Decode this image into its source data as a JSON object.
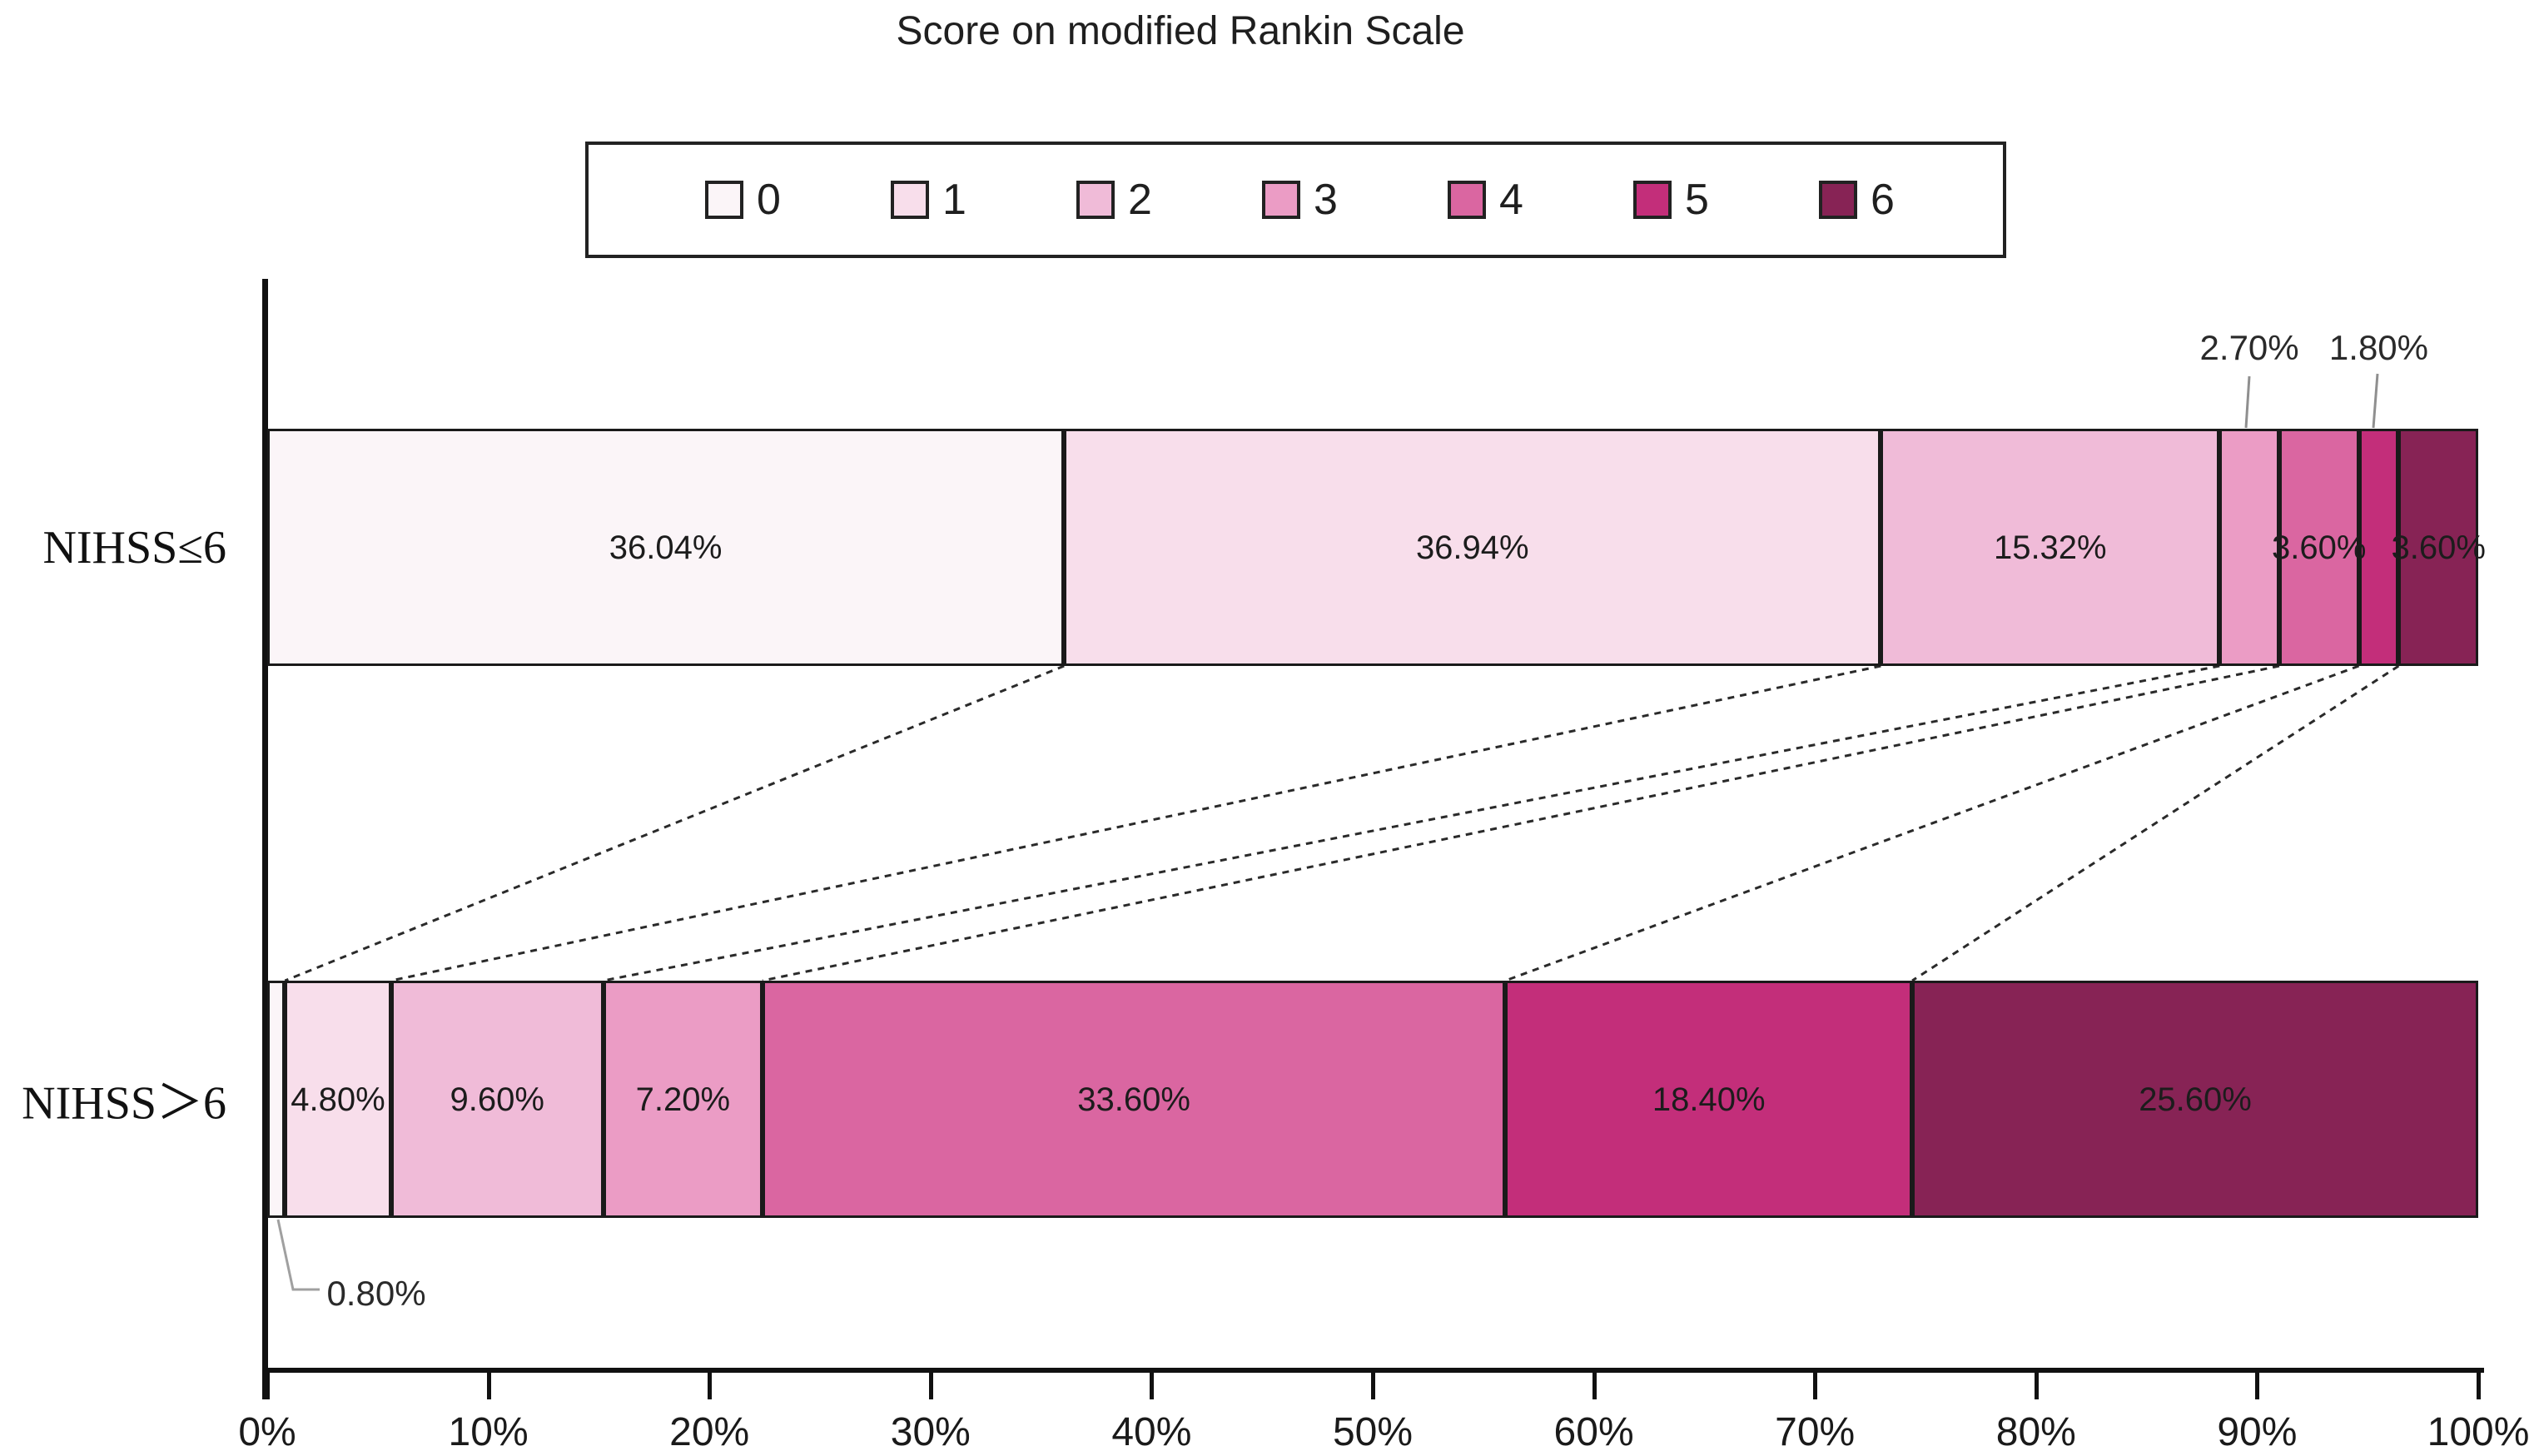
{
  "title": "Score on modified Rankin Scale",
  "legend": {
    "items": [
      {
        "label": "0",
        "color": "#FBF5F8"
      },
      {
        "label": "1",
        "color": "#F8DEEB"
      },
      {
        "label": "2",
        "color": "#F0BBD8"
      },
      {
        "label": "3",
        "color": "#EB9CC5"
      },
      {
        "label": "4",
        "color": "#DA66A1"
      },
      {
        "label": "5",
        "color": "#C32E7A"
      },
      {
        "label": "6",
        "color": "#872355"
      }
    ]
  },
  "chart_data": {
    "type": "bar",
    "subtype": "stacked-horizontal-percent",
    "title": "Score on modified Rankin Scale",
    "categories": [
      "NIHSS≤6",
      "NIHSS＞6"
    ],
    "series": [
      {
        "name": "0",
        "color": "#FBF5F8",
        "values": [
          36.04,
          0.8
        ],
        "labels": [
          "36.04%",
          "0.80%"
        ]
      },
      {
        "name": "1",
        "color": "#F8DEEB",
        "values": [
          36.94,
          4.8
        ],
        "labels": [
          "36.94%",
          "4.80%"
        ]
      },
      {
        "name": "2",
        "color": "#F0BBD8",
        "values": [
          15.32,
          9.6
        ],
        "labels": [
          "15.32%",
          "9.60%"
        ]
      },
      {
        "name": "3",
        "color": "#EB9CC5",
        "values": [
          2.7,
          7.2
        ],
        "labels": [
          "2.70%",
          "7.20%"
        ]
      },
      {
        "name": "4",
        "color": "#DA66A1",
        "values": [
          3.6,
          33.6
        ],
        "labels": [
          "3.60%",
          "33.60%"
        ]
      },
      {
        "name": "5",
        "color": "#C32E7A",
        "values": [
          1.8,
          18.4
        ],
        "labels": [
          "1.80%",
          "18.40%"
        ]
      },
      {
        "name": "6",
        "color": "#872355",
        "values": [
          3.6,
          25.6
        ],
        "labels": [
          "3.60%",
          "25.60%"
        ]
      }
    ],
    "x_axis": {
      "range": [
        0,
        100
      ],
      "tick_labels": [
        "0%",
        "10%",
        "20%",
        "30%",
        "40%",
        "50%",
        "60%",
        "70%",
        "80%",
        "90%",
        "100%"
      ]
    },
    "legend_position": "top",
    "grid": false,
    "annotations": {
      "callouts_above_top_bar": [
        {
          "text": "2.70%",
          "series": "3"
        },
        {
          "text": "1.80%",
          "series": "5"
        }
      ],
      "callout_below_bottom_bar": [
        {
          "text": "0.80%",
          "series": "0"
        }
      ],
      "connector_lines": "dashed lines joining series boundaries of the two bars"
    }
  }
}
